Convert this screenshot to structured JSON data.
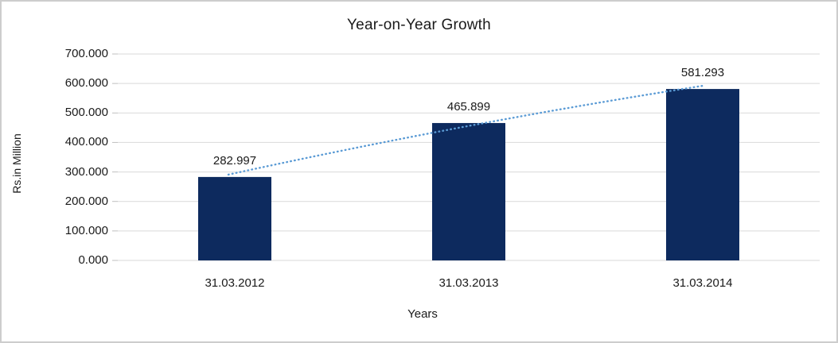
{
  "chart_data": {
    "type": "bar",
    "title": "Year-on-Year Growth",
    "xlabel": "Years",
    "ylabel": "Rs.in Million",
    "categories": [
      "31.03.2012",
      "31.03.2013",
      "31.03.2014"
    ],
    "values": [
      282.997,
      465.899,
      581.293
    ],
    "data_labels": [
      "282.997",
      "465.899",
      "581.293"
    ],
    "y_ticks": [
      "0.000",
      "100.000",
      "200.000",
      "300.000",
      "400.000",
      "500.000",
      "600.000",
      "700.000"
    ],
    "ylim": [
      0,
      700
    ],
    "y_step": 100,
    "grid": true,
    "legend": false,
    "has_trendline": true,
    "colors": {
      "bar": "#0d2a5e",
      "trendline": "#5b9bd5",
      "gridline": "#d9d9d9",
      "tick": "#bfbfbf",
      "text": "#1a1a1a",
      "background": "#ffffff",
      "frame_border": "#cdcdcd"
    }
  }
}
